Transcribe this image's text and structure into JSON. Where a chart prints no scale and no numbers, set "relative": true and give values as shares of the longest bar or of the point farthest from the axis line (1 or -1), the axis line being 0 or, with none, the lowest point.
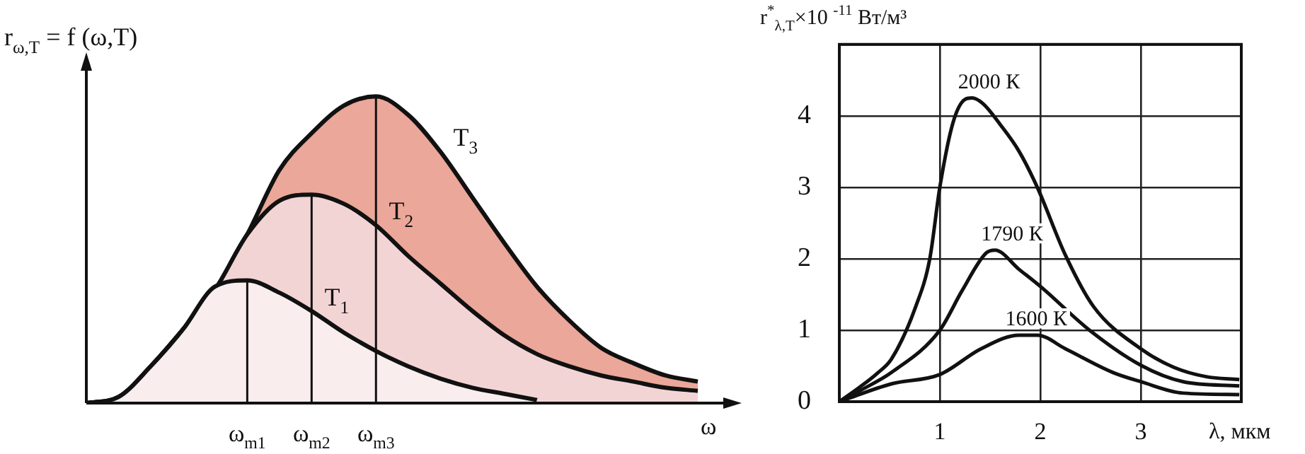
{
  "chart_data": [
    {
      "type": "area",
      "relative": true,
      "ylabel": "r$_{ω,T}$ = f (ω,T)",
      "xlabel": "ω",
      "tick_labels": "x",
      "grid": false,
      "legend": false,
      "marker": "none",
      "categories": [
        null,
        null,
        null,
        null,
        null,
        "ω$_{m1}$",
        null,
        "ω$_{m2}$",
        null,
        "ω$_{m3}$",
        null,
        null,
        null,
        null,
        null,
        null,
        null,
        null,
        null,
        null
      ],
      "series": [
        {
          "name": "T$_{1}$",
          "color": "#f9eded",
          "values": [
            0,
            0.02,
            0.12,
            0.24,
            0.38,
            0.4,
            0.36,
            0.3,
            0.23,
            0.17,
            0.12,
            0.08,
            0.05,
            0.03,
            0.01,
            null,
            null,
            null,
            null,
            null
          ]
        },
        {
          "name": "T$_{2}$",
          "color": "#f3d4d4",
          "values": [
            0,
            0.02,
            0.12,
            0.24,
            0.37,
            0.55,
            0.66,
            0.68,
            0.65,
            0.58,
            0.48,
            0.39,
            0.3,
            0.22,
            0.16,
            0.12,
            0.09,
            0.07,
            0.05,
            0.04
          ]
        },
        {
          "name": "T$_{3}$",
          "color": "#eba799",
          "values": [
            0,
            0.02,
            0.12,
            0.24,
            0.37,
            0.55,
            0.76,
            0.88,
            0.97,
            1,
            0.94,
            0.82,
            0.67,
            0.52,
            0.38,
            0.27,
            0.18,
            0.13,
            0.09,
            0.07
          ]
        }
      ],
      "ref_lines": [
        {
          "axis": "x",
          "value": "ω$_{m1}$"
        },
        {
          "axis": "x",
          "value": "ω$_{m2}$"
        },
        {
          "axis": "x",
          "value": "ω$_{m3}$"
        }
      ]
    },
    {
      "type": "line",
      "ylabel": "r$^{*}$$_{λ,T}$×10 $^{-11}$ Вт/м³",
      "xlabel": "λ, мкм",
      "grid": true,
      "legend": false,
      "marker": "none",
      "xlim": [
        0,
        4
      ],
      "xticks": [
        1,
        2,
        3
      ],
      "ylim": [
        0,
        5
      ],
      "yticks": [
        0,
        1,
        2,
        3,
        4,
        {
          "value": 5,
          "label": null
        }
      ],
      "series": [
        {
          "name": "2000 К",
          "color": "#111111",
          "x": [
            0,
            0.2,
            0.38,
            0.52,
            0.76,
            0.9,
            1.0,
            1.13,
            1.25,
            1.32,
            1.43,
            1.6,
            1.79,
            1.97,
            2.25,
            2.53,
            3.0,
            3.33,
            3.65,
            3.98
          ],
          "values": [
            0,
            0.2,
            0.4,
            0.6,
            1.33,
            2.0,
            3.0,
            3.9,
            4.23,
            4.25,
            4.17,
            3.88,
            3.5,
            3.0,
            2.05,
            1.33,
            0.74,
            0.48,
            0.35,
            0.31
          ]
        },
        {
          "name": "1790 К",
          "color": "#111111",
          "x": [
            0,
            0.2,
            0.52,
            1.0,
            1.22,
            1.46,
            1.55,
            1.79,
            2.02,
            2.49,
            3.0,
            3.42,
            3.98
          ],
          "values": [
            0,
            0.15,
            0.41,
            1.0,
            1.55,
            2.08,
            2.12,
            1.85,
            1.59,
            1.0,
            0.51,
            0.28,
            0.22
          ]
        },
        {
          "name": "1600 К",
          "color": "#111111",
          "x": [
            0,
            0.52,
            1.0,
            1.41,
            1.79,
            1.97,
            2.25,
            2.72,
            3.0,
            3.42,
            3.98
          ],
          "values": [
            0,
            0.25,
            0.38,
            0.74,
            0.93,
            0.93,
            0.74,
            0.41,
            0.28,
            0.12,
            0.1
          ]
        }
      ]
    }
  ]
}
